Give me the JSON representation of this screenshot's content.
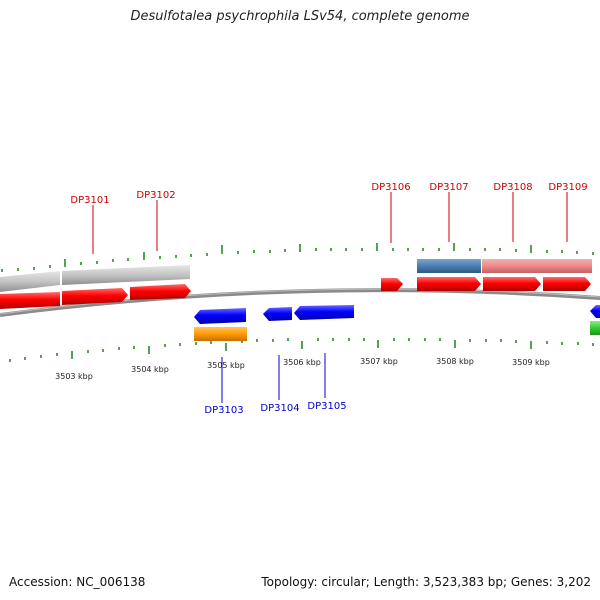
{
  "title": "Desulfotalea psychrophila LSv54, complete genome",
  "footer": {
    "accession": "Accession: NC_006138",
    "summary": "Topology: circular; Length: 3,523,383 bp; Genes: 3,202"
  },
  "colors": {
    "forward_gene": "#ff0000",
    "reverse_gene": "#0000ff",
    "gray_feature": "#c4c4c4",
    "steel_feature": "#4a7fb0",
    "pink_feature": "#ec8a8a",
    "orange_feature": "#ff9900",
    "green_feature": "#33cc33",
    "tick": "#2a8a2a",
    "backbone": "#777777",
    "label_forward": "#cc0000",
    "label_reverse": "#0000cc"
  },
  "scale": {
    "unit": "kbp",
    "labels": [
      "3503 kbp",
      "3504 kbp",
      "3505 kbp",
      "3506 kbp",
      "3507 kbp",
      "3508 kbp",
      "3509 kbp"
    ]
  },
  "genes_forward": [
    {
      "id": "DP3101"
    },
    {
      "id": "DP3102"
    },
    {
      "id": "DP3106"
    },
    {
      "id": "DP3107"
    },
    {
      "id": "DP3108"
    },
    {
      "id": "DP3109"
    }
  ],
  "genes_reverse": [
    {
      "id": "DP3103"
    },
    {
      "id": "DP3104"
    },
    {
      "id": "DP3105"
    }
  ]
}
